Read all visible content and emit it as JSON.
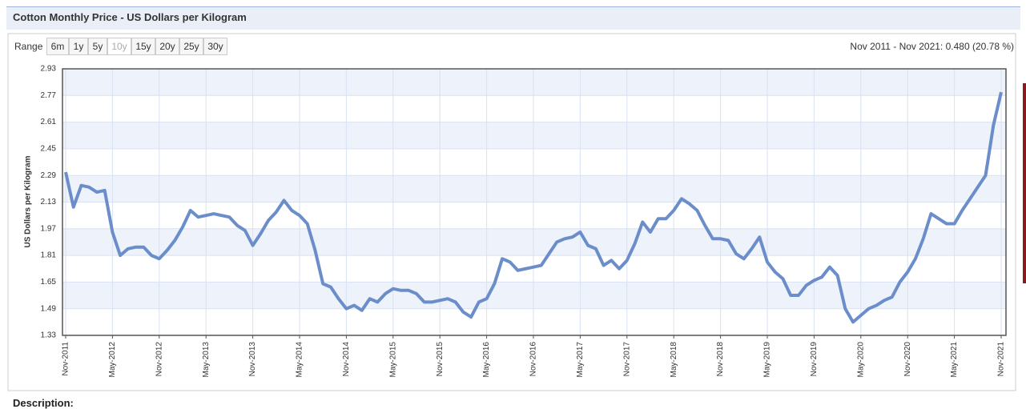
{
  "chart_data": {
    "type": "line",
    "title": "Cotton Monthly Price - US Dollars per Kilogram",
    "y_label": "US Dollars per Kilogram",
    "range_label": "Range",
    "range_options": [
      "6m",
      "1y",
      "5y",
      "10y",
      "15y",
      "20y",
      "25y",
      "30y"
    ],
    "summary": "Nov 2011 - Nov 2021: 0.480 (20.78 %)",
    "description_label": "Description:",
    "categories": [
      "Nov-2011",
      null,
      null,
      null,
      null,
      null,
      "May-2012",
      null,
      null,
      null,
      null,
      null,
      "Nov-2012",
      null,
      null,
      null,
      null,
      null,
      "May-2013",
      null,
      null,
      null,
      null,
      null,
      "Nov-2013",
      null,
      null,
      null,
      null,
      null,
      "May-2014",
      null,
      null,
      null,
      null,
      null,
      "Nov-2014",
      null,
      null,
      null,
      null,
      null,
      "May-2015",
      null,
      null,
      null,
      null,
      null,
      "Nov-2015",
      null,
      null,
      null,
      null,
      null,
      "May-2016",
      null,
      null,
      null,
      null,
      null,
      "Nov-2016",
      null,
      null,
      null,
      null,
      null,
      "May-2017",
      null,
      null,
      null,
      null,
      null,
      "Nov-2017",
      null,
      null,
      null,
      null,
      null,
      "May-2018",
      null,
      null,
      null,
      null,
      null,
      "Nov-2018",
      null,
      null,
      null,
      null,
      null,
      "May-2019",
      null,
      null,
      null,
      null,
      null,
      "Nov-2019",
      null,
      null,
      null,
      null,
      null,
      "May-2020",
      null,
      null,
      null,
      null,
      null,
      "Nov-2020",
      null,
      null,
      null,
      null,
      null,
      "May-2021",
      null,
      null,
      null,
      null,
      null,
      "Nov-2021"
    ],
    "values": [
      2.31,
      2.1,
      2.23,
      2.22,
      2.19,
      2.2,
      1.95,
      1.81,
      1.85,
      1.86,
      1.86,
      1.81,
      1.79,
      1.84,
      1.9,
      1.98,
      2.08,
      2.04,
      2.05,
      2.06,
      2.05,
      2.04,
      1.99,
      1.96,
      1.87,
      1.94,
      2.02,
      2.07,
      2.14,
      2.08,
      2.05,
      2.0,
      1.84,
      1.64,
      1.62,
      1.55,
      1.49,
      1.51,
      1.48,
      1.55,
      1.53,
      1.58,
      1.61,
      1.6,
      1.6,
      1.58,
      1.53,
      1.53,
      1.54,
      1.55,
      1.53,
      1.47,
      1.44,
      1.53,
      1.55,
      1.64,
      1.79,
      1.77,
      1.72,
      1.73,
      1.74,
      1.75,
      1.82,
      1.89,
      1.91,
      1.92,
      1.95,
      1.87,
      1.85,
      1.75,
      1.78,
      1.73,
      1.78,
      1.88,
      2.01,
      1.95,
      2.03,
      2.03,
      2.08,
      2.15,
      2.12,
      2.08,
      1.99,
      1.91,
      1.91,
      1.9,
      1.82,
      1.79,
      1.85,
      1.92,
      1.77,
      1.71,
      1.67,
      1.57,
      1.57,
      1.63,
      1.66,
      1.68,
      1.74,
      1.69,
      1.49,
      1.41,
      1.45,
      1.49,
      1.51,
      1.54,
      1.56,
      1.65,
      1.71,
      1.79,
      1.91,
      2.06,
      2.03,
      2.0,
      2.0,
      2.08,
      2.15,
      2.22,
      2.29,
      2.59,
      2.79
    ],
    "color": "#6b8ecb",
    "ylim": [
      1.33,
      2.93
    ],
    "yticks": [
      1.33,
      1.49,
      1.65,
      1.81,
      1.97,
      2.13,
      2.29,
      2.45,
      2.61,
      2.77,
      2.93
    ],
    "grid": true
  }
}
